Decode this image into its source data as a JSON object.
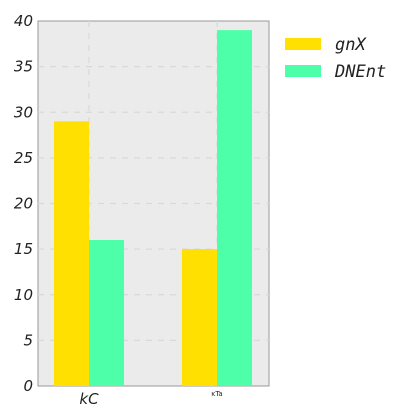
{
  "chart_data": {
    "type": "bar",
    "categories": [
      "kC",
      "ĸTa"
    ],
    "series": [
      {
        "name": "gnX",
        "values": [
          29,
          15
        ],
        "color": "#FFE000"
      },
      {
        "name": "DNEnt",
        "values": [
          16,
          39
        ],
        "color": "#4CFFA8"
      }
    ],
    "title": "",
    "xlabel": "",
    "ylabel": "",
    "ylim": [
      0,
      40
    ],
    "yticks": [
      0,
      5,
      10,
      15,
      20,
      25,
      30,
      35,
      40
    ],
    "grid": true,
    "legend_position": "right",
    "plot_background": "#EBEBEB"
  }
}
